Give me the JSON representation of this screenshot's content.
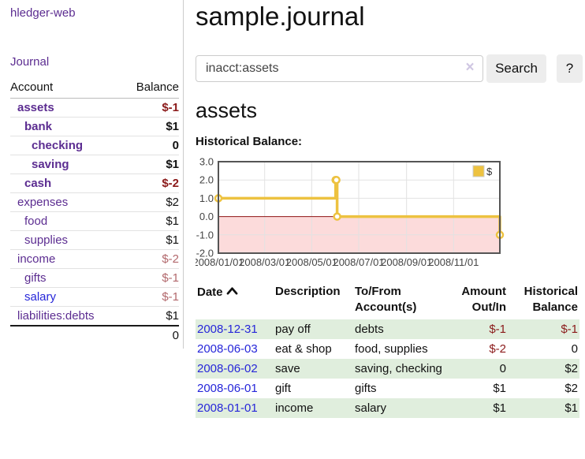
{
  "brand": "hledger-web",
  "nav": {
    "journal": "Journal"
  },
  "sidebar": {
    "header": {
      "account": "Account",
      "balance": "Balance"
    },
    "accounts": [
      {
        "name": "assets",
        "depth": 1,
        "balance": "$-1",
        "bold": true,
        "neg": "strong"
      },
      {
        "name": "bank",
        "depth": 2,
        "balance": "$1",
        "bold": true
      },
      {
        "name": "checking",
        "depth": 3,
        "balance": "0",
        "bold": true
      },
      {
        "name": "saving",
        "depth": 3,
        "balance": "$1",
        "bold": true
      },
      {
        "name": "cash",
        "depth": 2,
        "balance": "$-2",
        "bold": true,
        "neg": "strong"
      },
      {
        "name": "expenses",
        "depth": 1,
        "balance": "$2"
      },
      {
        "name": "food",
        "depth": 2,
        "balance": "$1"
      },
      {
        "name": "supplies",
        "depth": 2,
        "balance": "$1"
      },
      {
        "name": "income",
        "depth": 1,
        "balance": "$-2",
        "neg": "muted"
      },
      {
        "name": "gifts",
        "depth": 2,
        "balance": "$-1",
        "neg": "muted"
      },
      {
        "name": "salary",
        "depth": 2,
        "balance": "$-1",
        "neg": "muted",
        "link": "blue"
      },
      {
        "name": "liabilities:debts",
        "depth": 1,
        "balance": "$1"
      }
    ],
    "total": "0"
  },
  "header": {
    "title": "sample.journal"
  },
  "search": {
    "value": "inacct:assets",
    "clear_icon": "×",
    "button": "Search",
    "help_button": "?"
  },
  "account_page": {
    "heading": "assets",
    "chart_label": "Historical Balance:"
  },
  "chart_data": {
    "type": "line",
    "step": true,
    "title": "Historical Balance",
    "series": [
      {
        "name": "$",
        "points": [
          [
            "2008-01-01",
            1
          ],
          [
            "2008-06-01",
            2
          ],
          [
            "2008-06-02",
            2
          ],
          [
            "2008-06-03",
            0
          ],
          [
            "2008-12-31",
            -1
          ]
        ]
      }
    ],
    "x_domain": [
      "2008-01-01",
      "2008-12-31"
    ],
    "x_ticks": [
      {
        "date": "2008-01-01",
        "label": "2008/01/01"
      },
      {
        "date": "2008-03-01",
        "label": "2008/03/01"
      },
      {
        "date": "2008-05-01",
        "label": "2008/05/01"
      },
      {
        "date": "2008-07-01",
        "label": "2008/07/01"
      },
      {
        "date": "2008-09-01",
        "label": "2008/09/01"
      },
      {
        "date": "2008-11-01",
        "label": "2008/11/01"
      }
    ],
    "y_ticks": [
      {
        "v": 3,
        "label": "3.0"
      },
      {
        "v": 2,
        "label": "2.0"
      },
      {
        "v": 1,
        "label": "1.0"
      },
      {
        "v": 0,
        "label": "0.0"
      },
      {
        "v": -1,
        "label": "-1.0"
      },
      {
        "v": -2,
        "label": "-2.0"
      }
    ],
    "ylim": [
      -2,
      3
    ],
    "grid": true,
    "legend": {
      "label": "$",
      "position": "top-right"
    },
    "colors": {
      "line": "#edc240",
      "marker_fill": "#ffffff",
      "negative_region": "#fcdbdb",
      "zero_line": "#8e1212",
      "gridline": "#e2e2e2",
      "border": "#555555",
      "axis_text": "#444444"
    }
  },
  "register_table": {
    "columns": [
      "Date",
      "Description",
      "To/From Account(s)",
      "Amount Out/In",
      "Historical Balance"
    ],
    "rows": [
      {
        "date": "2008-12-31",
        "description": "pay off",
        "accounts": "debts",
        "amount": "$-1",
        "balance": "$-1",
        "amount_neg": true,
        "balance_neg": true
      },
      {
        "date": "2008-06-03",
        "description": "eat & shop",
        "accounts": "food, supplies",
        "amount": "$-2",
        "balance": "0",
        "amount_neg": true,
        "balance_neg": false
      },
      {
        "date": "2008-06-02",
        "description": "save",
        "accounts": "saving, checking",
        "amount": "0",
        "balance": "$2",
        "amount_neg": false,
        "balance_neg": false
      },
      {
        "date": "2008-06-01",
        "description": "gift",
        "accounts": "gifts",
        "amount": "$1",
        "balance": "$2",
        "amount_neg": false,
        "balance_neg": false
      },
      {
        "date": "2008-01-01",
        "description": "income",
        "accounts": "salary",
        "amount": "$1",
        "balance": "$1",
        "amount_neg": false,
        "balance_neg": false
      }
    ]
  }
}
